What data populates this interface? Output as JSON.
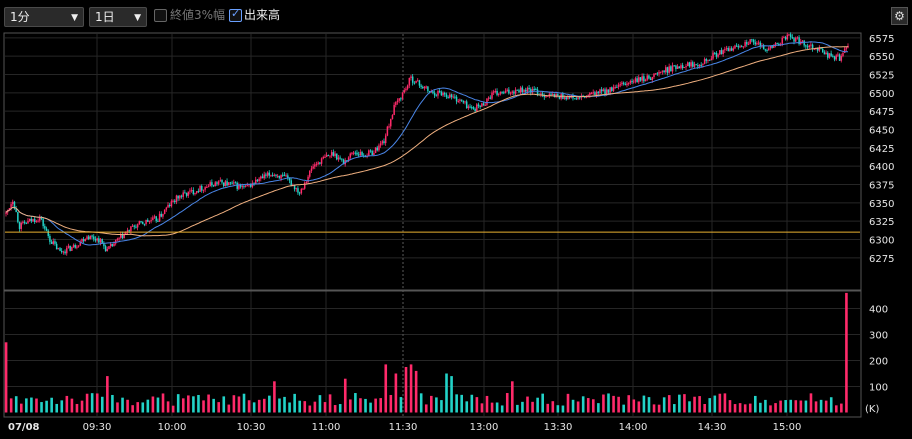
{
  "toolbar": {
    "interval": "1分",
    "period": "1日",
    "opt_range3": "終値3%幅",
    "opt_volume": "出来高",
    "opt_range3_checked": false,
    "opt_volume_checked": true
  },
  "icons": {
    "settings": "gear-icon",
    "dropdown": "caret-down-icon"
  },
  "colors": {
    "up": "#ff2a6a",
    "down": "#22d3c8",
    "ma_short": "#4a86e8",
    "ma_long": "#f0b080",
    "prev_close": "#e8b030"
  },
  "chart_data": {
    "type": "candlestick",
    "date_label": "07/08",
    "x_ticks": [
      "09:30",
      "10:00",
      "10:30",
      "11:00",
      "11:30",
      "13:00",
      "13:30",
      "14:00",
      "14:30",
      "15:00"
    ],
    "price_ticks": [
      6275,
      6300,
      6325,
      6350,
      6375,
      6400,
      6425,
      6450,
      6475,
      6500,
      6525,
      6550,
      6575
    ],
    "price_range": [
      6262,
      6590
    ],
    "prev_close_line": 6310,
    "volume_ticks": [
      100,
      200,
      300,
      400
    ],
    "volume_range": [
      0,
      480
    ],
    "volume_unit": "(K)",
    "price_anchors": [
      [
        0,
        6335
      ],
      [
        4,
        6355
      ],
      [
        8,
        6318
      ],
      [
        14,
        6325
      ],
      [
        20,
        6330
      ],
      [
        26,
        6300
      ],
      [
        32,
        6283
      ],
      [
        40,
        6290
      ],
      [
        48,
        6305
      ],
      [
        55,
        6300
      ],
      [
        60,
        6285
      ],
      [
        68,
        6303
      ],
      [
        76,
        6318
      ],
      [
        84,
        6325
      ],
      [
        90,
        6328
      ],
      [
        96,
        6345
      ],
      [
        102,
        6358
      ],
      [
        110,
        6365
      ],
      [
        118,
        6372
      ],
      [
        126,
        6378
      ],
      [
        134,
        6375
      ],
      [
        142,
        6370
      ],
      [
        150,
        6382
      ],
      [
        158,
        6390
      ],
      [
        166,
        6383
      ],
      [
        174,
        6365
      ],
      [
        182,
        6400
      ],
      [
        188,
        6410
      ],
      [
        194,
        6418
      ],
      [
        200,
        6405
      ],
      [
        206,
        6420
      ],
      [
        212,
        6415
      ],
      [
        218,
        6420
      ],
      [
        224,
        6435
      ],
      [
        230,
        6480
      ],
      [
        236,
        6503
      ],
      [
        240,
        6520
      ],
      [
        246,
        6510
      ],
      [
        252,
        6500
      ],
      [
        258,
        6500
      ],
      [
        264,
        6495
      ],
      [
        270,
        6488
      ],
      [
        276,
        6478
      ],
      [
        282,
        6483
      ],
      [
        288,
        6498
      ],
      [
        296,
        6500
      ],
      [
        304,
        6505
      ],
      [
        312,
        6503
      ],
      [
        320,
        6497
      ],
      [
        330,
        6495
      ],
      [
        340,
        6492
      ],
      [
        350,
        6500
      ],
      [
        360,
        6505
      ],
      [
        370,
        6515
      ],
      [
        380,
        6520
      ],
      [
        390,
        6530
      ],
      [
        400,
        6538
      ],
      [
        410,
        6540
      ],
      [
        420,
        6552
      ],
      [
        430,
        6560
      ],
      [
        440,
        6570
      ],
      [
        446,
        6565
      ],
      [
        452,
        6560
      ],
      [
        458,
        6568
      ],
      [
        464,
        6578
      ],
      [
        470,
        6570
      ],
      [
        476,
        6565
      ],
      [
        482,
        6560
      ],
      [
        488,
        6550
      ],
      [
        494,
        6548
      ],
      [
        499,
        6562
      ]
    ],
    "volume_spikes": [
      [
        0,
        270
      ],
      [
        60,
        140
      ],
      [
        160,
        120
      ],
      [
        200,
        130
      ],
      [
        226,
        185
      ],
      [
        230,
        150
      ],
      [
        236,
        175
      ],
      [
        240,
        185
      ],
      [
        244,
        160
      ],
      [
        260,
        150
      ],
      [
        265,
        140
      ],
      [
        300,
        120
      ],
      [
        498,
        460
      ]
    ]
  }
}
